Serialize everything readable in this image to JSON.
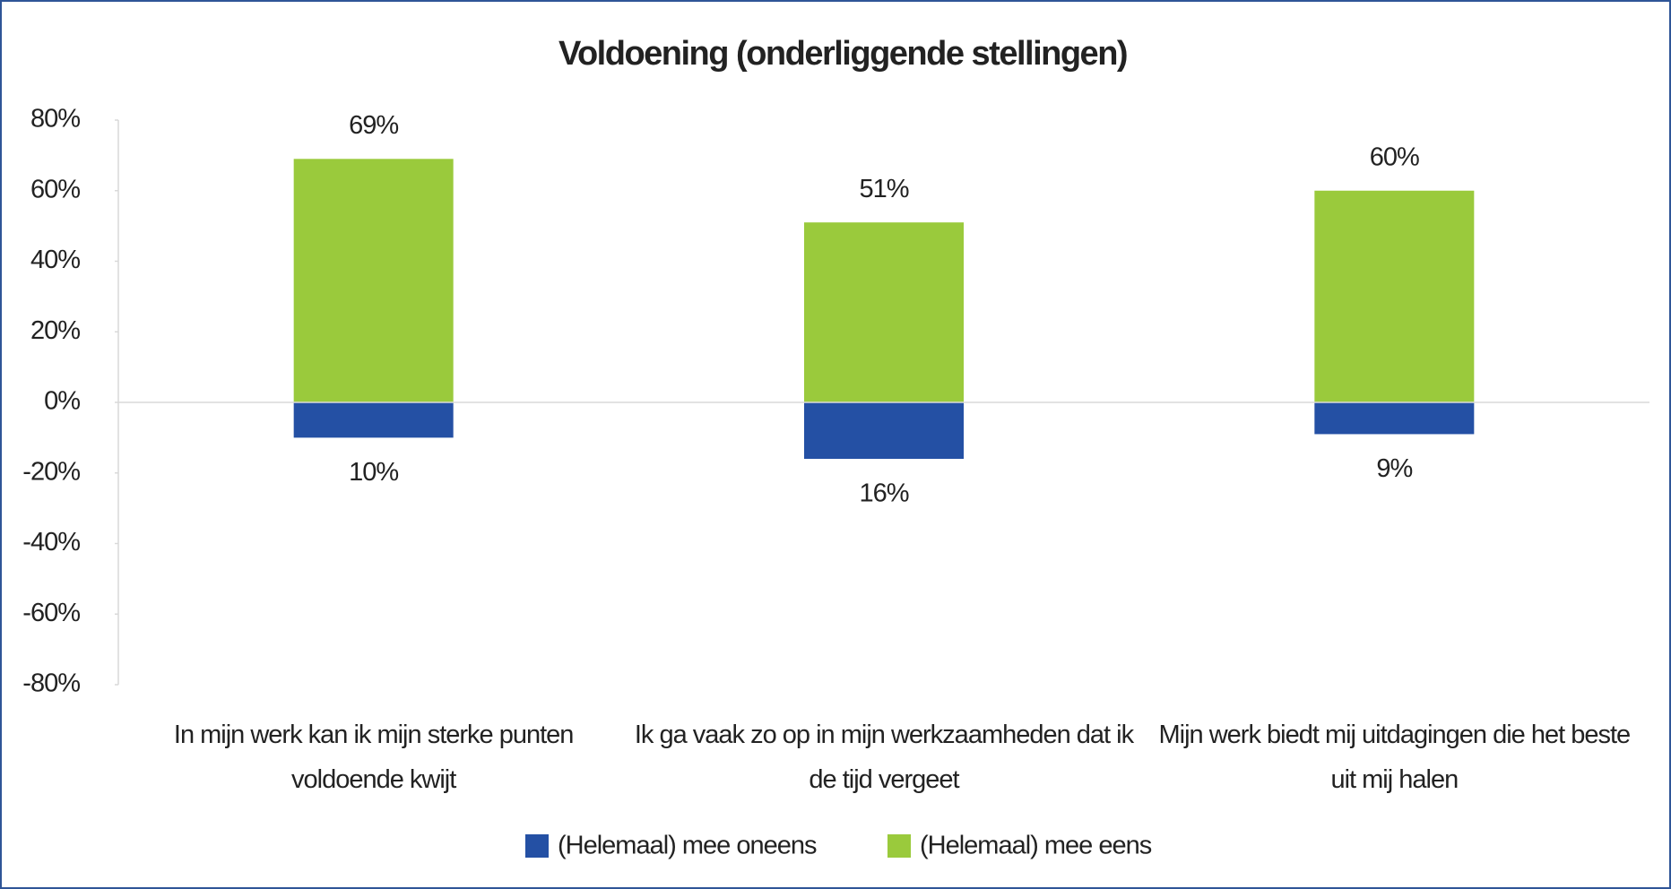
{
  "chart_data": {
    "type": "bar",
    "title": "Voldoening (onderliggende stellingen)",
    "categories": [
      "In mijn werk kan ik mijn sterke punten voldoende kwijt",
      "Ik ga vaak zo op in mijn werkzaamheden dat ik de tijd vergeet",
      "Mijn werk biedt mij uitdagingen die het beste uit mij halen"
    ],
    "series": [
      {
        "name": "(Helemaal) mee oneens",
        "color": "#2450a4",
        "values": [
          -10,
          -16,
          -9
        ],
        "value_labels": [
          "10%",
          "16%",
          "9%"
        ]
      },
      {
        "name": "(Helemaal) mee eens",
        "color": "#9aca3c",
        "values": [
          69,
          51,
          60
        ],
        "value_labels": [
          "69%",
          "51%",
          "60%"
        ]
      }
    ],
    "ylim": [
      -80,
      80
    ],
    "yticks": [
      {
        "value": -80,
        "label": "-80%"
      },
      {
        "value": -60,
        "label": "-60%"
      },
      {
        "value": -40,
        "label": "-40%"
      },
      {
        "value": -20,
        "label": "-20%"
      },
      {
        "value": 0,
        "label": "0%"
      },
      {
        "value": 20,
        "label": "20%"
      },
      {
        "value": 40,
        "label": "40%"
      },
      {
        "value": 60,
        "label": "60%"
      },
      {
        "value": 80,
        "label": "80%"
      }
    ],
    "legend": "bottom"
  }
}
